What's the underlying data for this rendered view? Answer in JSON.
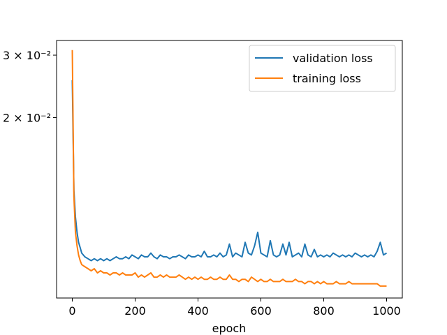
{
  "chart_data": {
    "type": "line",
    "title": "",
    "xlabel": "epoch",
    "ylabel": "",
    "xlim": [
      -50,
      1050
    ],
    "ylim": [
      0.0062,
      0.033
    ],
    "yscale": "log",
    "grid": false,
    "legend_position": "top-right",
    "x_ticks": [
      0,
      200,
      400,
      600,
      800,
      1000
    ],
    "x_tick_labels": [
      "0",
      "200",
      "400",
      "600",
      "800",
      "1000"
    ],
    "y_ticks": [
      0.03,
      0.02
    ],
    "y_tick_labels": [
      "3 × 10⁻²",
      "2 × 10⁻²"
    ],
    "series": [
      {
        "name": "validation loss",
        "color": "#1f77b4",
        "x": [
          0,
          5,
          10,
          15,
          20,
          25,
          30,
          40,
          50,
          60,
          70,
          80,
          90,
          100,
          110,
          120,
          130,
          140,
          150,
          160,
          170,
          180,
          190,
          200,
          210,
          220,
          230,
          240,
          250,
          260,
          270,
          280,
          290,
          300,
          310,
          320,
          330,
          340,
          350,
          360,
          370,
          380,
          390,
          400,
          410,
          420,
          430,
          440,
          450,
          460,
          470,
          480,
          490,
          500,
          510,
          520,
          530,
          540,
          550,
          560,
          570,
          580,
          590,
          600,
          610,
          620,
          630,
          640,
          650,
          660,
          670,
          680,
          690,
          700,
          710,
          720,
          730,
          740,
          750,
          760,
          770,
          780,
          790,
          800,
          810,
          820,
          830,
          840,
          850,
          860,
          870,
          880,
          890,
          900,
          910,
          920,
          930,
          940,
          950,
          960,
          970,
          980,
          990,
          1000
        ],
        "values": [
          0.0255,
          0.0125,
          0.0105,
          0.0095,
          0.0089,
          0.0086,
          0.0083,
          0.0081,
          0.008,
          0.0079,
          0.008,
          0.0079,
          0.008,
          0.0079,
          0.008,
          0.0079,
          0.008,
          0.0081,
          0.008,
          0.008,
          0.0081,
          0.008,
          0.0082,
          0.0081,
          0.008,
          0.0082,
          0.0081,
          0.0081,
          0.0083,
          0.0081,
          0.008,
          0.0082,
          0.0081,
          0.0081,
          0.008,
          0.0081,
          0.0081,
          0.0082,
          0.0081,
          0.008,
          0.0082,
          0.0081,
          0.0081,
          0.0082,
          0.0081,
          0.0084,
          0.0081,
          0.0081,
          0.0082,
          0.0081,
          0.0083,
          0.0081,
          0.0082,
          0.0088,
          0.0081,
          0.0083,
          0.0082,
          0.0081,
          0.0089,
          0.0083,
          0.0082,
          0.0087,
          0.0095,
          0.0083,
          0.0082,
          0.0081,
          0.009,
          0.0082,
          0.0081,
          0.0082,
          0.0088,
          0.0082,
          0.0089,
          0.0081,
          0.0082,
          0.0083,
          0.0081,
          0.0088,
          0.0082,
          0.0081,
          0.0085,
          0.0081,
          0.0082,
          0.0081,
          0.0082,
          0.0081,
          0.0083,
          0.0082,
          0.0081,
          0.0082,
          0.0081,
          0.0082,
          0.0081,
          0.0083,
          0.0082,
          0.0081,
          0.0082,
          0.0081,
          0.0082,
          0.0081,
          0.0084,
          0.0089,
          0.0082,
          0.0083
        ]
      },
      {
        "name": "training loss",
        "color": "#ff7f0e",
        "x": [
          0,
          5,
          10,
          15,
          20,
          25,
          30,
          40,
          50,
          60,
          70,
          80,
          90,
          100,
          110,
          120,
          130,
          140,
          150,
          160,
          170,
          180,
          190,
          200,
          210,
          220,
          230,
          240,
          250,
          260,
          270,
          280,
          290,
          300,
          310,
          320,
          330,
          340,
          350,
          360,
          370,
          380,
          390,
          400,
          410,
          420,
          430,
          440,
          450,
          460,
          470,
          480,
          490,
          500,
          510,
          520,
          530,
          540,
          550,
          560,
          570,
          580,
          590,
          600,
          610,
          620,
          630,
          640,
          650,
          660,
          670,
          680,
          690,
          700,
          710,
          720,
          730,
          740,
          750,
          760,
          770,
          780,
          790,
          800,
          810,
          820,
          830,
          840,
          850,
          860,
          870,
          880,
          890,
          900,
          910,
          920,
          930,
          940,
          950,
          960,
          970,
          980,
          990,
          1000
        ],
        "values": [
          0.031,
          0.012,
          0.0095,
          0.0087,
          0.0082,
          0.0079,
          0.0077,
          0.0076,
          0.0075,
          0.0074,
          0.0075,
          0.0073,
          0.0074,
          0.0073,
          0.0073,
          0.0072,
          0.0073,
          0.0073,
          0.0072,
          0.0073,
          0.0072,
          0.0072,
          0.0072,
          0.0073,
          0.0071,
          0.0072,
          0.0071,
          0.0072,
          0.0073,
          0.0071,
          0.0071,
          0.0072,
          0.0071,
          0.0072,
          0.0071,
          0.0071,
          0.0071,
          0.0072,
          0.0071,
          0.007,
          0.0071,
          0.007,
          0.0071,
          0.007,
          0.0071,
          0.007,
          0.007,
          0.0071,
          0.007,
          0.007,
          0.0071,
          0.007,
          0.007,
          0.0072,
          0.007,
          0.007,
          0.0069,
          0.007,
          0.007,
          0.0069,
          0.0071,
          0.007,
          0.0069,
          0.007,
          0.0069,
          0.0069,
          0.007,
          0.0069,
          0.0069,
          0.0069,
          0.007,
          0.0069,
          0.0069,
          0.0069,
          0.007,
          0.0069,
          0.0069,
          0.0068,
          0.0069,
          0.0069,
          0.0068,
          0.0069,
          0.0068,
          0.0069,
          0.0068,
          0.0068,
          0.0068,
          0.0069,
          0.0068,
          0.0068,
          0.0068,
          0.0069,
          0.0068,
          0.0068,
          0.0068,
          0.0068,
          0.0068,
          0.0068,
          0.0068,
          0.0068,
          0.0068,
          0.0067,
          0.0067,
          0.0067
        ]
      }
    ]
  }
}
